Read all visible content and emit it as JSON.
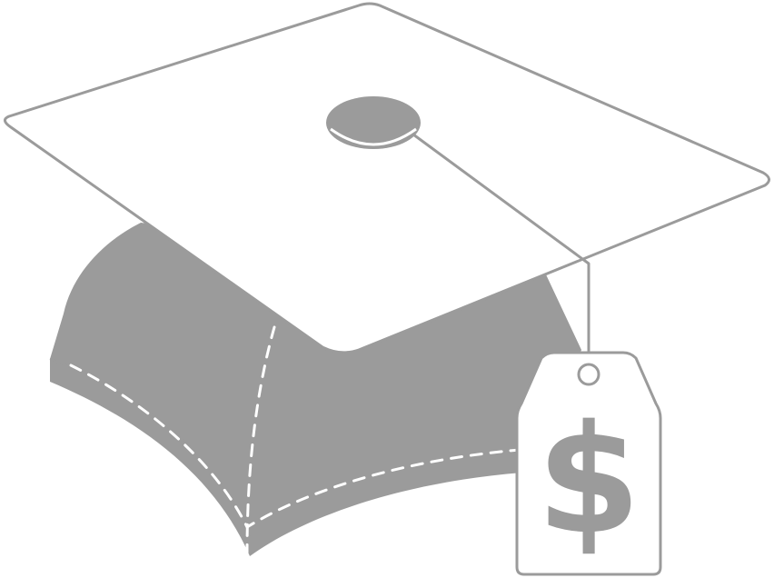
{
  "illustration": {
    "subject": "graduation-cap-with-price-tag",
    "price_tag": {
      "symbol": "$"
    },
    "colors": {
      "fill_gray": "#9b9b9b",
      "stroke_gray": "#9b9b9b",
      "board_fill": "#ffffff",
      "stitch_color": "#ffffff",
      "background": "#ffffff"
    }
  }
}
